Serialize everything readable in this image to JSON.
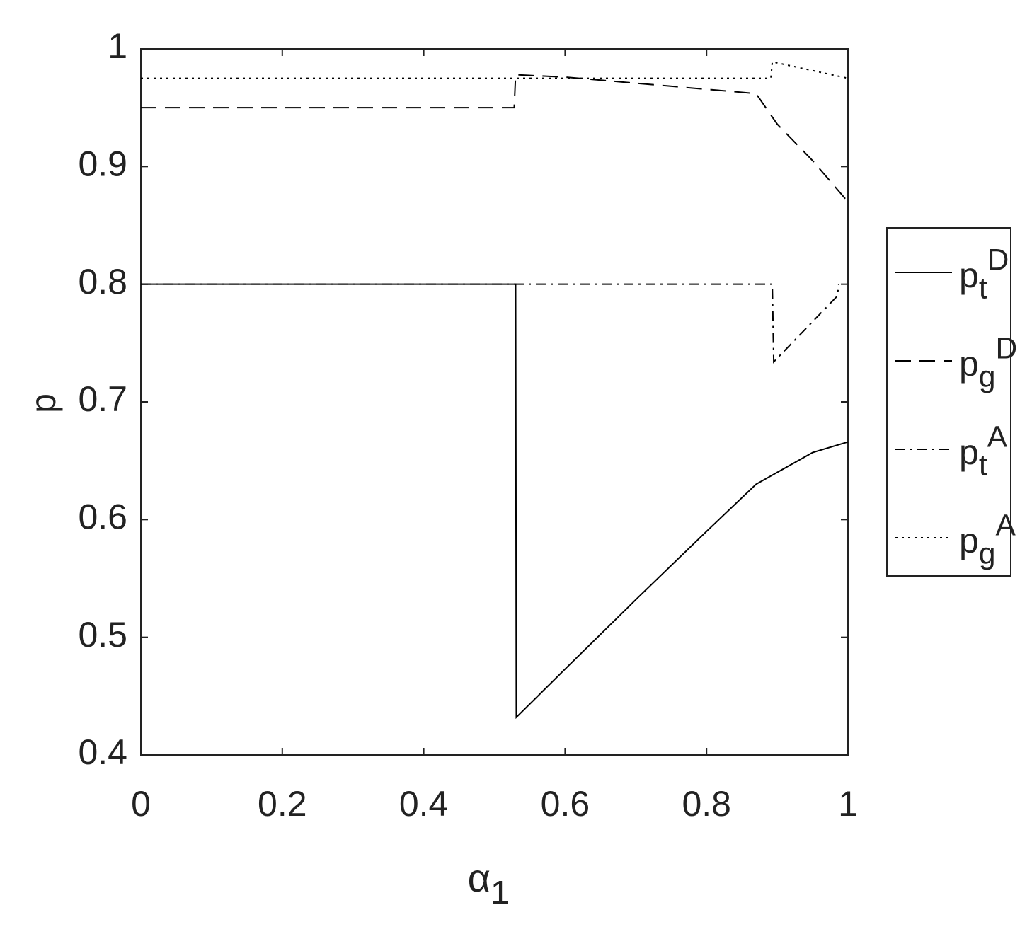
{
  "chart_data": {
    "type": "line",
    "xlabel": "α_1",
    "ylabel": "p",
    "xlim": [
      0,
      1
    ],
    "ylim": [
      0.4,
      1
    ],
    "xticks": [
      0,
      0.2,
      0.4,
      0.6,
      0.8,
      1
    ],
    "yticks": [
      0.4,
      0.5,
      0.6,
      0.7,
      0.8,
      0.9,
      1
    ],
    "legend": "outside-right",
    "series": [
      {
        "name": "p_t^D",
        "color": "#000000",
        "style": "solid",
        "x": [
          0,
          0.53,
          0.531,
          0.6,
          0.7,
          0.8,
          0.87,
          0.95,
          1
        ],
        "values": [
          0.8,
          0.8,
          0.432,
          0.473,
          0.532,
          0.59,
          0.63,
          0.657,
          0.666
        ]
      },
      {
        "name": "p_g^D",
        "color": "#000000",
        "style": "dashed",
        "x": [
          0,
          0.528,
          0.53,
          0.6,
          0.87,
          0.9,
          0.95,
          1
        ],
        "values": [
          0.95,
          0.95,
          0.978,
          0.976,
          0.962,
          0.936,
          0.905,
          0.87
        ]
      },
      {
        "name": "p_t^A",
        "color": "#000000",
        "style": "dashdot",
        "x": [
          0,
          0.893,
          0.895,
          0.985,
          0.987
        ],
        "values": [
          0.8,
          0.8,
          0.734,
          0.79,
          0.8
        ]
      },
      {
        "name": "p_g^A",
        "color": "#000000",
        "style": "dotted",
        "x": [
          0,
          0.891,
          0.893,
          1
        ],
        "values": [
          0.975,
          0.975,
          0.989,
          0.975
        ]
      }
    ]
  }
}
